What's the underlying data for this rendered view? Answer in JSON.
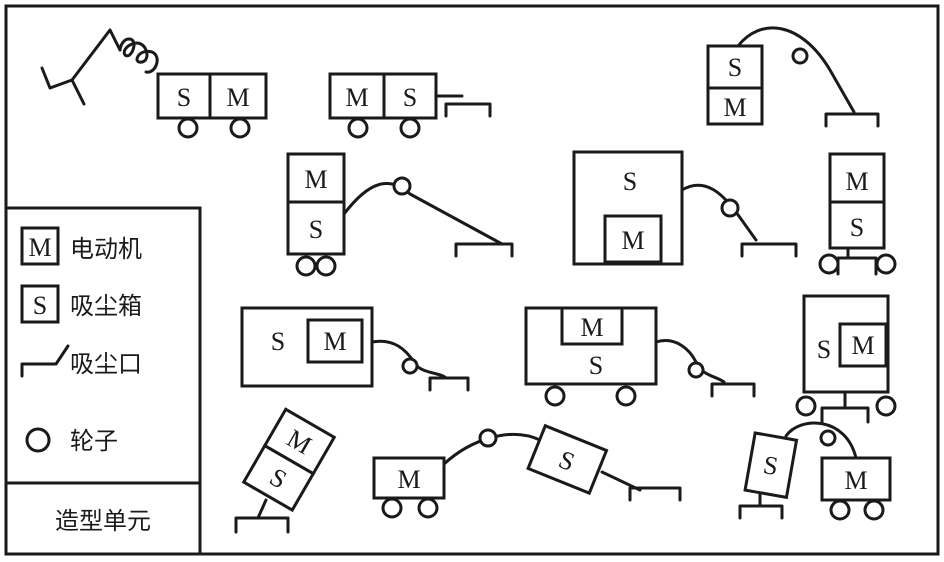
{
  "labels": {
    "motor": "M",
    "dust": "S"
  },
  "legend": {
    "motor_label": "电动机",
    "dust_box_label": "吸尘箱",
    "inlet_label": "吸尘口",
    "wheel_label": "轮子",
    "title": "造型单元"
  },
  "colors": {
    "ink": "#1a1a1a",
    "paper": "#ffffff"
  }
}
